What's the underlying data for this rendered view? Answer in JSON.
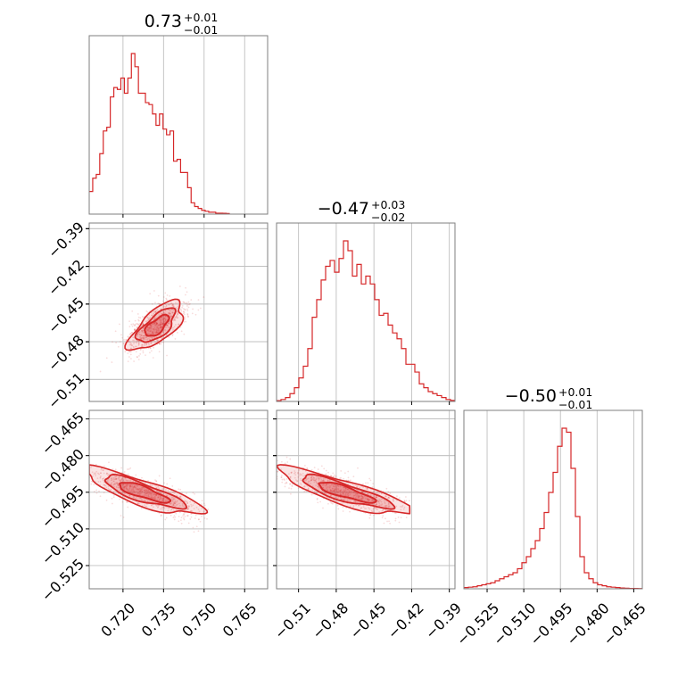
{
  "chart_data": {
    "type": "corner",
    "color": "#d62728",
    "parameters": [
      {
        "title": {
          "value": "0.73",
          "upper": "+0.01",
          "lower": "−0.01"
        },
        "range": [
          0.7075,
          0.7735
        ],
        "ticks": [
          0.72,
          0.735,
          0.75,
          0.765
        ],
        "tick_labels": [
          "0.720",
          "0.735",
          "0.750",
          "0.765"
        ],
        "hist": {
          "start": 0.7075,
          "bin_width": 0.0013,
          "heights": [
            0.12,
            0.19,
            0.21,
            0.32,
            0.44,
            0.46,
            0.62,
            0.67,
            0.66,
            0.72,
            0.64,
            0.72,
            0.85,
            0.78,
            0.64,
            0.64,
            0.59,
            0.58,
            0.53,
            0.47,
            0.53,
            0.45,
            0.42,
            0.44,
            0.28,
            0.29,
            0.22,
            0.22,
            0.14,
            0.06,
            0.04,
            0.03,
            0.02,
            0.015,
            0.01,
            0.01,
            0.005,
            0.005,
            0.004,
            0.003
          ]
        }
      },
      {
        "title": {
          "value": "−0.47",
          "upper": "+0.03",
          "lower": "−0.02"
        },
        "range": [
          -0.5275,
          -0.3855
        ],
        "ticks": [
          -0.51,
          -0.48,
          -0.45,
          -0.42,
          -0.39
        ],
        "tick_labels": [
          "−0.51",
          "−0.48",
          "−0.45",
          "−0.42",
          "−0.39"
        ],
        "hist": {
          "start": -0.5275,
          "bin_width": 0.00355,
          "heights": [
            0.004,
            0.01,
            0.02,
            0.04,
            0.07,
            0.12,
            0.18,
            0.27,
            0.43,
            0.52,
            0.62,
            0.69,
            0.72,
            0.66,
            0.73,
            0.82,
            0.77,
            0.64,
            0.7,
            0.6,
            0.64,
            0.6,
            0.52,
            0.44,
            0.45,
            0.39,
            0.35,
            0.32,
            0.27,
            0.19,
            0.19,
            0.15,
            0.09,
            0.07,
            0.05,
            0.04,
            0.03,
            0.02,
            0.01,
            0.005
          ]
        }
      },
      {
        "title": {
          "value": "−0.50",
          "upper": "+0.01",
          "lower": "−0.01"
        },
        "range": [
          -0.5345,
          -0.4615
        ],
        "ticks": [
          -0.525,
          -0.51,
          -0.495,
          -0.48,
          -0.465
        ],
        "tick_labels": [
          "−0.525",
          "−0.510",
          "−0.495",
          "−0.480",
          "−0.465"
        ],
        "hist": {
          "start": -0.5345,
          "bin_width": 0.001825,
          "heights": [
            0.006,
            0.008,
            0.01,
            0.015,
            0.02,
            0.025,
            0.03,
            0.04,
            0.05,
            0.06,
            0.07,
            0.08,
            0.1,
            0.13,
            0.16,
            0.2,
            0.24,
            0.3,
            0.38,
            0.48,
            0.58,
            0.71,
            0.8,
            0.78,
            0.6,
            0.36,
            0.16,
            0.08,
            0.05,
            0.03,
            0.02,
            0.015,
            0.01,
            0.008,
            0.006,
            0.004,
            0.003,
            0.002,
            0.002,
            0.001
          ]
        }
      }
    ],
    "pairs": [
      {
        "x_param": 0,
        "y_param": 1,
        "center": [
          0.7325,
          -0.4675
        ],
        "slope": 2.5,
        "length_sd": 0.009,
        "width_sd": 0.003,
        "x_clip": [
          0.7075,
          0.7515
        ]
      },
      {
        "x_param": 0,
        "y_param": 2,
        "center": [
          0.7275,
          -0.495
        ],
        "slope": -0.38,
        "length_sd": 0.01,
        "width_sd": 0.0022,
        "x_clip": [
          0.7075,
          0.7515
        ]
      },
      {
        "x_param": 1,
        "y_param": 2,
        "center": [
          -0.4725,
          -0.495
        ],
        "slope": -0.155,
        "length_sd": 0.023,
        "width_sd": 0.0022,
        "x_clip": [
          -0.5275,
          -0.4215
        ]
      }
    ],
    "grid": true
  }
}
